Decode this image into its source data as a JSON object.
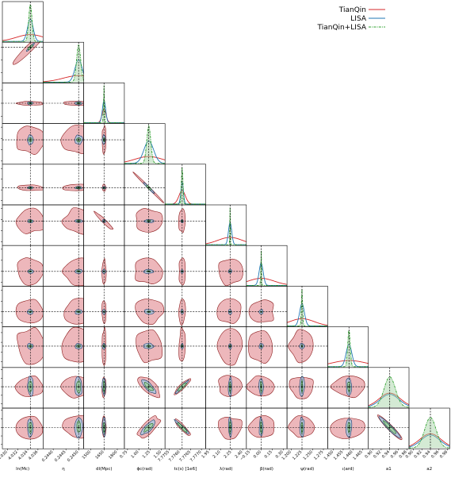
{
  "chart_data": {
    "type": "scatter",
    "subtype": "corner-plot",
    "params": [
      {
        "label": "ln(M_c)",
        "display": "ln(Mc)",
        "ticks": [
          "4.030",
          "4.032",
          "4.034",
          "4.036"
        ],
        "range": [
          4.029,
          4.037
        ],
        "truth": 4.0345,
        "rotate": true
      },
      {
        "label": "η",
        "ticks": [
          "0.2440",
          "0.2445",
          "0.2450"
        ],
        "range": [
          0.2436,
          0.2452
        ],
        "truth": 0.245,
        "rotate": true
      },
      {
        "label": "dl(Mpc)",
        "ticks": [
          "1500",
          "1650",
          "1800"
        ],
        "range": [
          1420,
          1880
        ],
        "truth": 1650,
        "rotate": true
      },
      {
        "label": "ϕ_c(rad)",
        "display": "ϕc(rad)",
        "ticks": [
          "0.75",
          "1.00",
          "1.25",
          "1.50"
        ],
        "range": [
          0.68,
          1.58
        ],
        "truth": 1.22,
        "rotate": true
      },
      {
        "label": "t_c(s) [1e6]",
        "display": "tc(s) [1e6]",
        "ticks": [
          "7.7755",
          "7.7760",
          "7.7765",
          "7.7770"
        ],
        "range": [
          7.7753,
          7.7772
        ],
        "truth": 7.7761,
        "rotate": true
      },
      {
        "label": "λ(rad)",
        "ticks": [
          "1.95",
          "2.10",
          "2.25",
          "2.40"
        ],
        "range": [
          1.9,
          2.45
        ],
        "truth": 2.23,
        "rotate": true
      },
      {
        "label": "β(rad)",
        "ticks": [
          "−0.15",
          "0.00",
          "0.15",
          "0.30"
        ],
        "range": [
          -0.2,
          0.35
        ],
        "truth": 0.0,
        "rotate": true
      },
      {
        "label": "ψ(rad)",
        "ticks": [
          "1.200",
          "1.225",
          "1.250",
          "1.275"
        ],
        "range": [
          1.19,
          1.285
        ],
        "truth": 1.225,
        "rotate": true
      },
      {
        "label": "ι(ard)",
        "ticks": [
          "1.450",
          "1.455",
          "1.460",
          "1.465"
        ],
        "range": [
          1.447,
          1.468
        ],
        "truth": 1.458,
        "rotate": true
      },
      {
        "label": "a_1",
        "display": "a1",
        "ticks": [
          "0.90",
          "0.92",
          "0.94",
          "0.96",
          "0.98"
        ],
        "range": [
          0.89,
          0.985
        ],
        "truth": 0.94,
        "rotate": true
      },
      {
        "label": "a_2",
        "display": "a2",
        "ticks": [
          "0.90",
          "0.92",
          "0.94",
          "0.96",
          "0.98"
        ],
        "range": [
          0.89,
          0.985
        ],
        "truth": 0.94,
        "rotate": true
      }
    ],
    "series": [
      {
        "name": "TianQin",
        "color": "#d62728",
        "fill": "#e8a5aa",
        "linestyle": "solid"
      },
      {
        "name": "LISA",
        "color": "#1f77b4",
        "fill": "#a9c6e3",
        "linestyle": "solid"
      },
      {
        "name": "TianQin+LISA",
        "color": "#2ca02c",
        "fill": "#9fd09f",
        "linestyle": "dashdot"
      }
    ],
    "legend": "top-right",
    "truth_line_style": "dashed-black",
    "grid": false
  }
}
